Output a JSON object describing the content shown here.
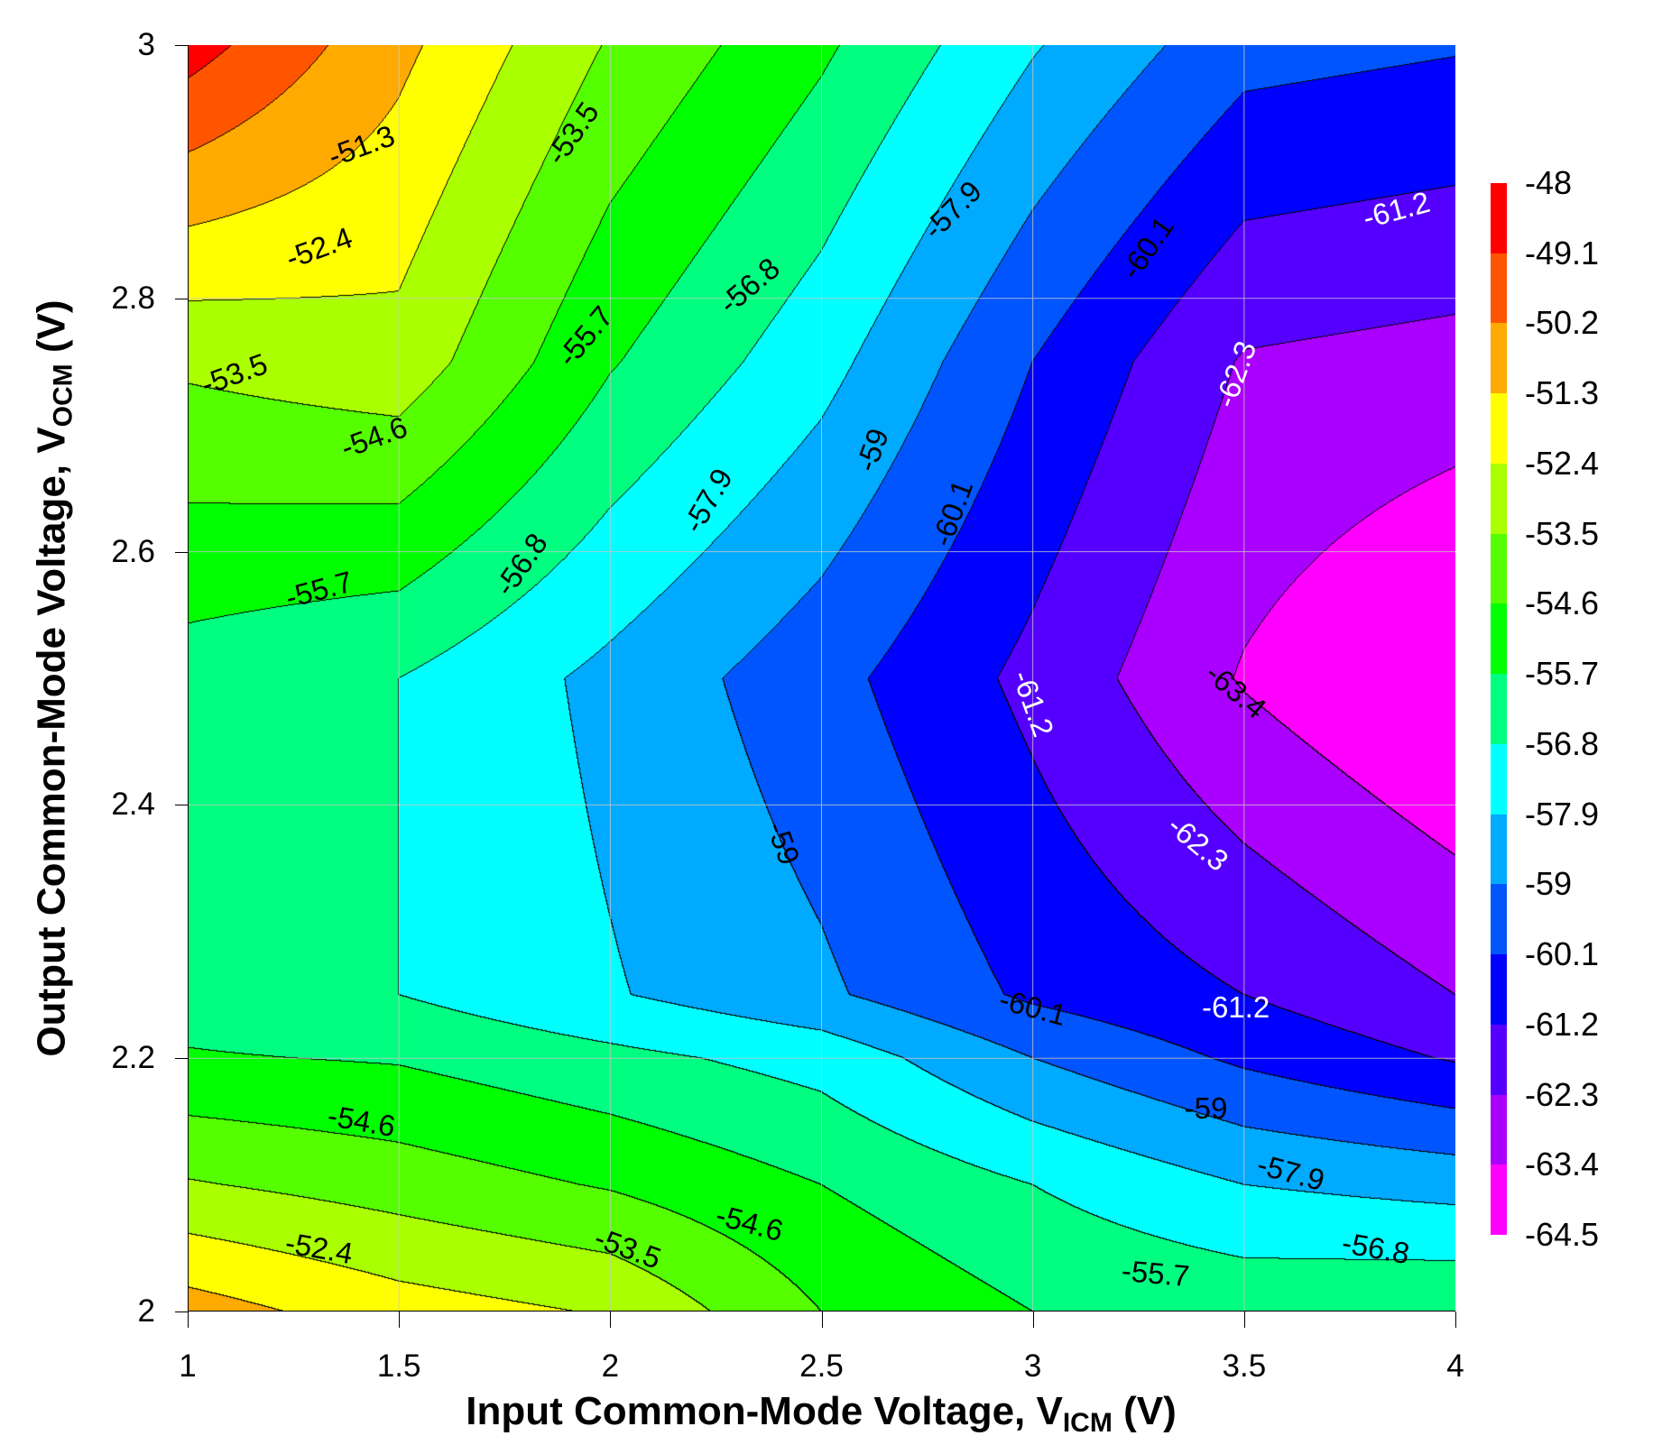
{
  "chart_data": {
    "type": "contour",
    "xlabel": "Input Common-Mode Voltage, V",
    "xlabel_sub": "ICM",
    "xlabel_unit": " (V)",
    "ylabel": "Output Common-Mode Voltage, V",
    "ylabel_sub": "OCM",
    "ylabel_unit": " (V)",
    "xlim": [
      1,
      4
    ],
    "ylim": [
      2,
      3
    ],
    "xticks": [
      "1",
      "1.5",
      "2",
      "2.5",
      "3",
      "3.5",
      "4"
    ],
    "yticks": [
      "2",
      "2.2",
      "2.4",
      "2.6",
      "2.8",
      "3"
    ],
    "grid": true,
    "legend_placement": "right",
    "levels": [
      "-48",
      "-49.1",
      "-50.2",
      "-51.3",
      "-52.4",
      "-53.5",
      "-54.6",
      "-55.7",
      "-56.8",
      "-57.9",
      "-59",
      "-60.1",
      "-61.2",
      "-62.3",
      "-63.4",
      "-64.5"
    ],
    "colors": [
      "#FF0000",
      "#FF5500",
      "#FFAA00",
      "#FFFF00",
      "#AAFF00",
      "#55FF00",
      "#00FF00",
      "#00FF80",
      "#00FFFF",
      "#00AAFF",
      "#0055FF",
      "#0000FF",
      "#5500FF",
      "#AA00FF",
      "#FF00FF"
    ],
    "x": [
      1,
      1.5,
      2,
      2.5,
      3,
      3.5,
      4
    ],
    "y": [
      2.0,
      2.1,
      2.2,
      2.25,
      2.5,
      2.75,
      3.0
    ],
    "z": [
      [
        -50.8,
        -51.9,
        -52.5,
        -54.6,
        -55.7,
        -56.0,
        -55.8
      ],
      [
        -53.4,
        -54.0,
        -54.7,
        -55.7,
        -56.8,
        -57.9,
        -58.3
      ],
      [
        -55.6,
        -55.8,
        -56.5,
        -57.2,
        -59.0,
        -60.3,
        -61.3
      ],
      [
        -56.2,
        -56.8,
        -57.8,
        -58.8,
        -60.3,
        -61.2,
        -62.3
      ],
      [
        -56.2,
        -56.8,
        -58.2,
        -59.7,
        -61.5,
        -63.5,
        -64.8
      ],
      [
        -53.3,
        -52.8,
        -55.6,
        -57.5,
        -60.1,
        -62.4,
        -62.7
      ],
      [
        -48.6,
        -51.0,
        -53.6,
        -55.5,
        -57.8,
        -59.7,
        -60.0
      ]
    ],
    "contour_labels": [
      {
        "text": "-51.3",
        "x": 1.41,
        "y": 2.92,
        "color": "#000000"
      },
      {
        "text": "-53.5",
        "x": 1.91,
        "y": 2.93,
        "color": "#000000"
      },
      {
        "text": "-52.4",
        "x": 1.31,
        "y": 2.84,
        "color": "#000000"
      },
      {
        "text": "-53.5",
        "x": 1.11,
        "y": 2.74,
        "color": "#000000"
      },
      {
        "text": "-55.7",
        "x": 1.94,
        "y": 2.77,
        "color": "#000000"
      },
      {
        "text": "-56.8",
        "x": 2.33,
        "y": 2.81,
        "color": "#000000"
      },
      {
        "text": "-57.9",
        "x": 2.81,
        "y": 2.87,
        "color": "#000000"
      },
      {
        "text": "-60.1",
        "x": 3.27,
        "y": 2.84,
        "color": "#000000"
      },
      {
        "text": "-61.2",
        "x": 3.86,
        "y": 2.87,
        "color": "#FFFFFF"
      },
      {
        "text": "-62.3",
        "x": 3.48,
        "y": 2.74,
        "color": "#FFFFFF"
      },
      {
        "text": "-54.6",
        "x": 1.44,
        "y": 2.69,
        "color": "#000000"
      },
      {
        "text": "-57.9",
        "x": 2.23,
        "y": 2.64,
        "color": "#000000"
      },
      {
        "text": "-59",
        "x": 2.62,
        "y": 2.68,
        "color": "#000000"
      },
      {
        "text": "-60.1",
        "x": 2.81,
        "y": 2.63,
        "color": "#000000"
      },
      {
        "text": "-55.7",
        "x": 1.31,
        "y": 2.57,
        "color": "#000000"
      },
      {
        "text": "-56.8",
        "x": 1.79,
        "y": 2.59,
        "color": "#000000"
      },
      {
        "text": "-61.2",
        "x": 3.0,
        "y": 2.48,
        "color": "#FFFFFF"
      },
      {
        "text": "-63.4",
        "x": 3.48,
        "y": 2.49,
        "color": "#000000"
      },
      {
        "text": "-62.3",
        "x": 3.39,
        "y": 2.37,
        "color": "#FFFFFF"
      },
      {
        "text": "-59",
        "x": 2.41,
        "y": 2.37,
        "color": "#000000"
      },
      {
        "text": "-60.1",
        "x": 3.0,
        "y": 2.24,
        "color": "#000000"
      },
      {
        "text": "-61.2",
        "x": 3.48,
        "y": 2.24,
        "color": "#FFFFFF"
      },
      {
        "text": "-59",
        "x": 3.41,
        "y": 2.16,
        "color": "#000000"
      },
      {
        "text": "-57.9",
        "x": 3.61,
        "y": 2.11,
        "color": "#000000"
      },
      {
        "text": "-56.8",
        "x": 3.81,
        "y": 2.05,
        "color": "#000000"
      },
      {
        "text": "-55.7",
        "x": 3.29,
        "y": 2.03,
        "color": "#000000"
      },
      {
        "text": "-54.6",
        "x": 1.41,
        "y": 2.15,
        "color": "#000000"
      },
      {
        "text": "-54.6",
        "x": 2.33,
        "y": 2.07,
        "color": "#000000"
      },
      {
        "text": "-53.5",
        "x": 2.04,
        "y": 2.05,
        "color": "#000000"
      },
      {
        "text": "-52.4",
        "x": 1.31,
        "y": 2.05,
        "color": "#000000"
      }
    ]
  }
}
